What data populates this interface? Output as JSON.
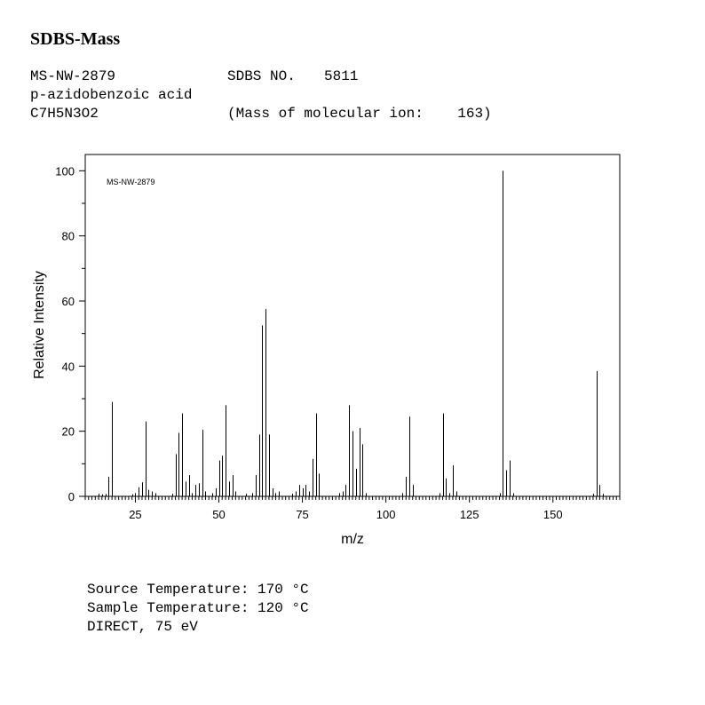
{
  "header": {
    "title": "SDBS-Mass",
    "ms_code": "MS-NW-2879",
    "sdbs_no_label": "SDBS NO.",
    "sdbs_no": "5811",
    "compound": "p-azidobenzoic acid",
    "formula": "C7H5N3O2",
    "molecular_ion_text": "(Mass of molecular ion:    163)"
  },
  "conditions": {
    "source_temperature": "Source Temperature: 170 °C",
    "sample_temperature": "Sample Temperature: 120 °C",
    "ionization": "DIRECT, 75 eV"
  },
  "chart_data": {
    "type": "bar",
    "inset_label": "MS-NW-2879",
    "xlabel": "m/z",
    "ylabel": "Relative Intensity",
    "xlim": [
      10,
      170
    ],
    "ylim": [
      0,
      105
    ],
    "x_ticks": [
      25,
      50,
      75,
      100,
      125,
      150
    ],
    "y_ticks": [
      0,
      20,
      40,
      60,
      80,
      100
    ],
    "grid": false,
    "peaks": [
      {
        "mz": 14,
        "intensity": 0.8
      },
      {
        "mz": 15,
        "intensity": 0.6
      },
      {
        "mz": 16,
        "intensity": 0.7
      },
      {
        "mz": 17,
        "intensity": 6.0
      },
      {
        "mz": 18,
        "intensity": 29.0
      },
      {
        "mz": 24,
        "intensity": 0.6
      },
      {
        "mz": 25,
        "intensity": 1.0
      },
      {
        "mz": 26,
        "intensity": 2.8
      },
      {
        "mz": 27,
        "intensity": 4.3
      },
      {
        "mz": 28,
        "intensity": 23.0
      },
      {
        "mz": 29,
        "intensity": 2.0
      },
      {
        "mz": 30,
        "intensity": 1.5
      },
      {
        "mz": 31,
        "intensity": 1.0
      },
      {
        "mz": 36,
        "intensity": 0.8
      },
      {
        "mz": 37,
        "intensity": 13.0
      },
      {
        "mz": 38,
        "intensity": 19.5
      },
      {
        "mz": 39,
        "intensity": 25.5
      },
      {
        "mz": 40,
        "intensity": 4.5
      },
      {
        "mz": 41,
        "intensity": 6.5
      },
      {
        "mz": 42,
        "intensity": 1.0
      },
      {
        "mz": 43,
        "intensity": 3.5
      },
      {
        "mz": 44,
        "intensity": 4.0
      },
      {
        "mz": 45,
        "intensity": 20.5
      },
      {
        "mz": 46,
        "intensity": 1.5
      },
      {
        "mz": 48,
        "intensity": 1.0
      },
      {
        "mz": 49,
        "intensity": 2.5
      },
      {
        "mz": 50,
        "intensity": 11.0
      },
      {
        "mz": 51,
        "intensity": 12.5
      },
      {
        "mz": 52,
        "intensity": 28.0
      },
      {
        "mz": 53,
        "intensity": 4.5
      },
      {
        "mz": 54,
        "intensity": 6.5
      },
      {
        "mz": 55,
        "intensity": 1.5
      },
      {
        "mz": 58,
        "intensity": 0.8
      },
      {
        "mz": 60,
        "intensity": 1.0
      },
      {
        "mz": 61,
        "intensity": 6.5
      },
      {
        "mz": 62,
        "intensity": 19.0
      },
      {
        "mz": 63,
        "intensity": 52.5
      },
      {
        "mz": 64,
        "intensity": 57.5
      },
      {
        "mz": 65,
        "intensity": 19.0
      },
      {
        "mz": 66,
        "intensity": 2.5
      },
      {
        "mz": 67,
        "intensity": 1.0
      },
      {
        "mz": 68,
        "intensity": 1.5
      },
      {
        "mz": 72,
        "intensity": 0.8
      },
      {
        "mz": 73,
        "intensity": 1.5
      },
      {
        "mz": 74,
        "intensity": 3.5
      },
      {
        "mz": 75,
        "intensity": 2.5
      },
      {
        "mz": 76,
        "intensity": 3.5
      },
      {
        "mz": 77,
        "intensity": 1.5
      },
      {
        "mz": 78,
        "intensity": 11.5
      },
      {
        "mz": 79,
        "intensity": 25.5
      },
      {
        "mz": 80,
        "intensity": 7.0
      },
      {
        "mz": 86,
        "intensity": 1.0
      },
      {
        "mz": 87,
        "intensity": 1.5
      },
      {
        "mz": 88,
        "intensity": 3.5
      },
      {
        "mz": 89,
        "intensity": 28.0
      },
      {
        "mz": 90,
        "intensity": 20.0
      },
      {
        "mz": 91,
        "intensity": 8.5
      },
      {
        "mz": 92,
        "intensity": 21.0
      },
      {
        "mz": 93,
        "intensity": 16.0
      },
      {
        "mz": 94,
        "intensity": 1.0
      },
      {
        "mz": 105,
        "intensity": 1.0
      },
      {
        "mz": 106,
        "intensity": 6.0
      },
      {
        "mz": 107,
        "intensity": 24.5
      },
      {
        "mz": 108,
        "intensity": 3.5
      },
      {
        "mz": 116,
        "intensity": 1.0
      },
      {
        "mz": 117,
        "intensity": 25.5
      },
      {
        "mz": 118,
        "intensity": 5.5
      },
      {
        "mz": 119,
        "intensity": 1.0
      },
      {
        "mz": 120,
        "intensity": 9.5
      },
      {
        "mz": 121,
        "intensity": 1.5
      },
      {
        "mz": 134,
        "intensity": 1.0
      },
      {
        "mz": 135,
        "intensity": 100.0
      },
      {
        "mz": 136,
        "intensity": 8.0
      },
      {
        "mz": 137,
        "intensity": 11.0
      },
      {
        "mz": 138,
        "intensity": 1.0
      },
      {
        "mz": 162,
        "intensity": 0.8
      },
      {
        "mz": 163,
        "intensity": 38.5
      },
      {
        "mz": 164,
        "intensity": 3.5
      },
      {
        "mz": 165,
        "intensity": 0.8
      }
    ]
  }
}
